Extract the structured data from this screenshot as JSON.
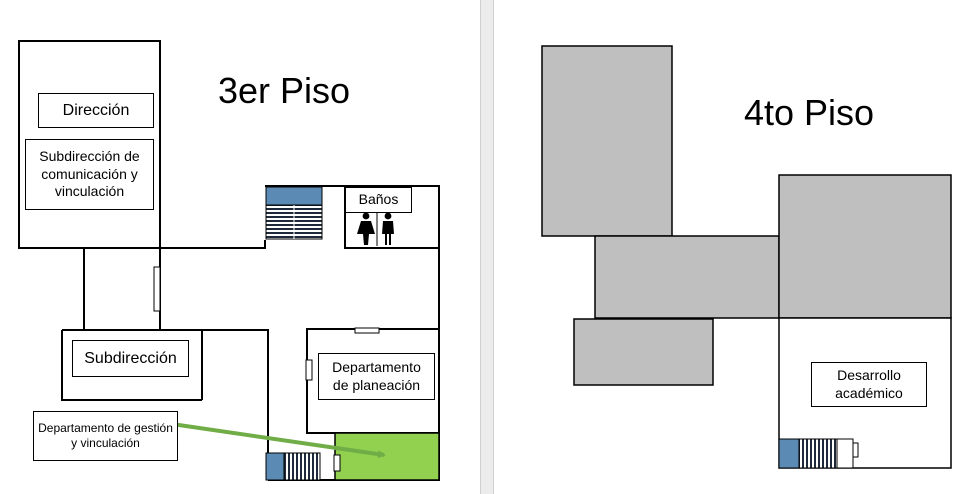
{
  "floor3": {
    "title": "3er Piso",
    "rooms": {
      "direccion": "Dirección",
      "subdireccion_comunicacion": "Subdirección de comunicación y vinculación",
      "banos": "Baños",
      "subdireccion": "Subdirección",
      "planeacion": "Departamento de planeación",
      "gestion": "Departamento de gestión y vinculación"
    }
  },
  "floor4": {
    "title": "4to Piso",
    "rooms": {
      "desarrollo": "Desarrollo académico"
    }
  },
  "colors": {
    "highlight": "#92d050",
    "arrow": "#70ad47",
    "stairs": "#5b8bb5",
    "occupied": "#bfbfbf"
  },
  "icons": [
    "stairs-icon",
    "restroom-icon",
    "door-icon",
    "arrow-icon"
  ]
}
